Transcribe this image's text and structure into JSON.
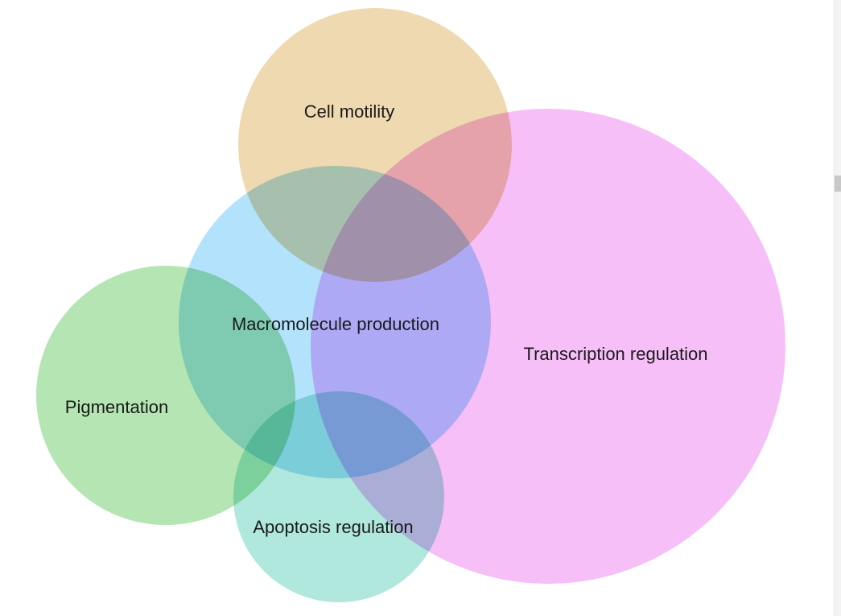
{
  "diagram": {
    "type": "venn",
    "sets": [
      {
        "id": "transcription",
        "label": "Transcription regulation",
        "color": "#f4a6f5",
        "opacity": 0.72
      },
      {
        "id": "cell-motility",
        "label": "Cell motility",
        "color": "#e8cc96",
        "opacity": 0.75
      },
      {
        "id": "macromolecule",
        "label": "Macromolecule production",
        "color": "#8fd4fb",
        "opacity": 0.68
      },
      {
        "id": "pigmentation",
        "label": "Pigmentation",
        "color": "#90d98f",
        "opacity": 0.68
      },
      {
        "id": "apoptosis",
        "label": "Apoptosis regulation",
        "color": "#7fdac8",
        "opacity": 0.62
      }
    ]
  }
}
